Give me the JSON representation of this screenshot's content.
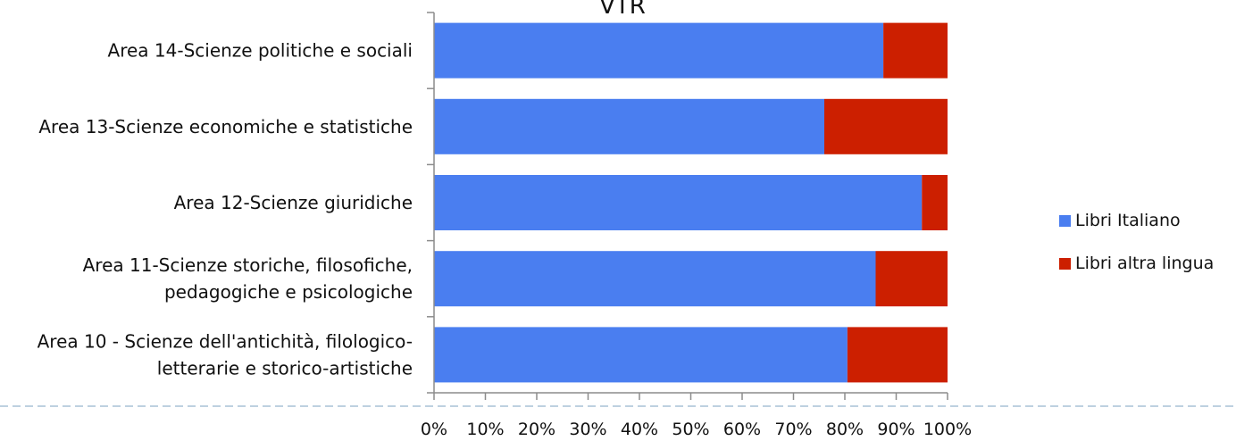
{
  "chart_data": {
    "type": "bar",
    "orientation": "horizontal",
    "stacked": true,
    "title": "VTR",
    "xlabel": "",
    "ylabel": "",
    "xlim": [
      0,
      100
    ],
    "grid": false,
    "legend_position": "right",
    "categories": [
      [
        "Area 14-Scienze politiche e sociali"
      ],
      [
        "Area 13-Scienze economiche e statistiche"
      ],
      [
        "Area 12-Scienze giuridiche"
      ],
      [
        "Area 11-Scienze storiche, filosofiche,",
        "pedagogiche e psicologiche"
      ],
      [
        "Area 10 - Scienze dell'antichità, filologico-",
        "letterarie e storico-artistiche"
      ]
    ],
    "x_ticks": [
      "0%",
      "10%",
      "20%",
      "30%",
      "40%",
      "50%",
      "60%",
      "70%",
      "80%",
      "90%",
      "100%"
    ],
    "series": [
      {
        "name": "Libri Italiano",
        "color": "#4a7ef0",
        "values": [
          87.5,
          76,
          95,
          86,
          80.5
        ]
      },
      {
        "name": "Libri altra lingua",
        "color": "#cc1f00",
        "values": [
          12.5,
          24,
          5,
          14,
          19.5
        ]
      }
    ]
  }
}
